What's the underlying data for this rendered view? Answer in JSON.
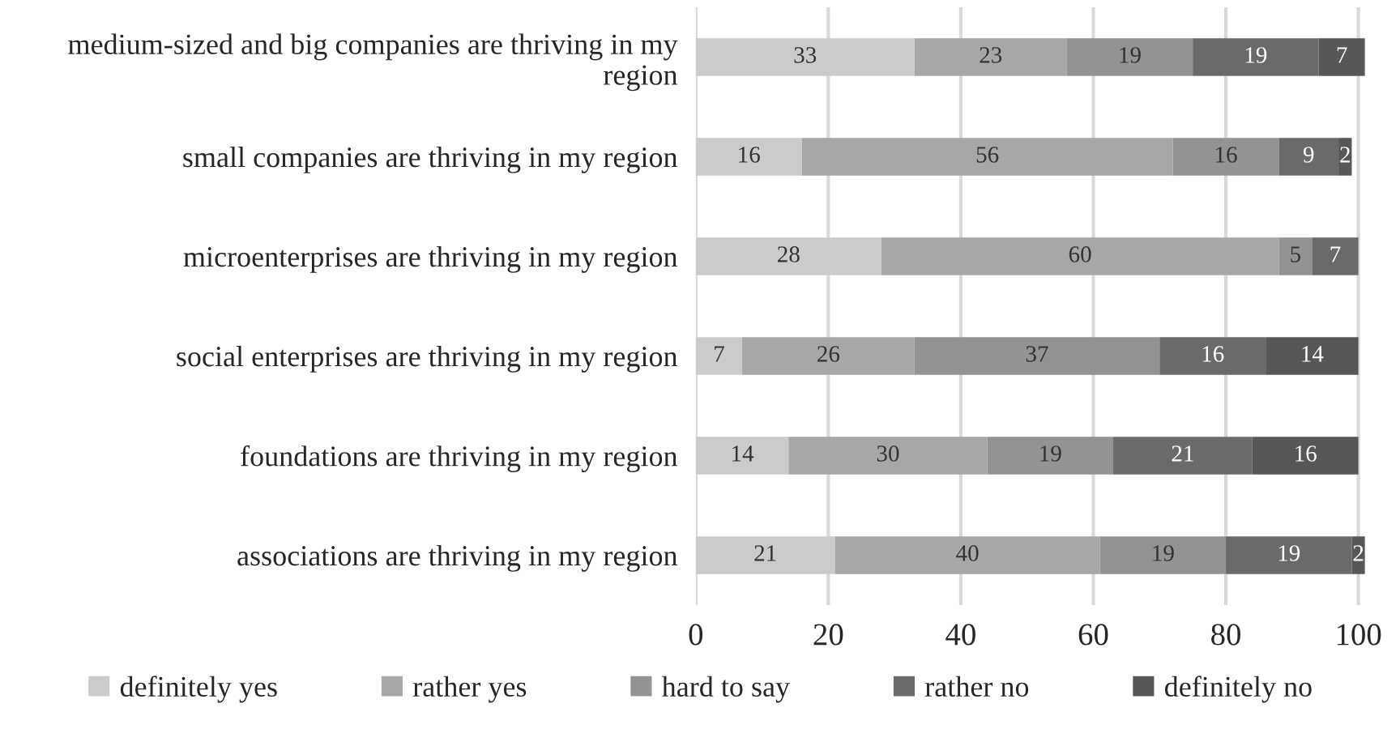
{
  "chart_data": {
    "type": "bar",
    "orientation": "horizontal",
    "stacked": true,
    "data_labels": true,
    "categories": [
      "medium-sized and big companies are thriving in my region",
      "small companies are thriving in my region",
      "microenterprises are thriving in my region",
      "social enterprises are thriving in my region",
      "foundations are thriving in my region",
      "associations are thriving in my region"
    ],
    "series": [
      {
        "name": "definitely yes",
        "color": "#cbcbcb",
        "values": [
          33,
          16,
          28,
          7,
          14,
          21
        ]
      },
      {
        "name": "rather yes",
        "color": "#a7a7a9",
        "values": [
          23,
          56,
          60,
          26,
          30,
          40
        ]
      },
      {
        "name": "hard to say",
        "color": "#939393",
        "values": [
          19,
          16,
          5,
          37,
          19,
          19
        ]
      },
      {
        "name": "rather no",
        "color": "#6a6a6c",
        "values": [
          19,
          9,
          7,
          16,
          21,
          19
        ]
      },
      {
        "name": "definitely no",
        "color": "#575757",
        "values": [
          7,
          2,
          null,
          14,
          16,
          2
        ]
      }
    ],
    "xlim": [
      0,
      101
    ],
    "xticks": [
      0,
      20,
      40,
      60,
      80,
      100
    ],
    "grid": "x",
    "legend": "bottom"
  }
}
